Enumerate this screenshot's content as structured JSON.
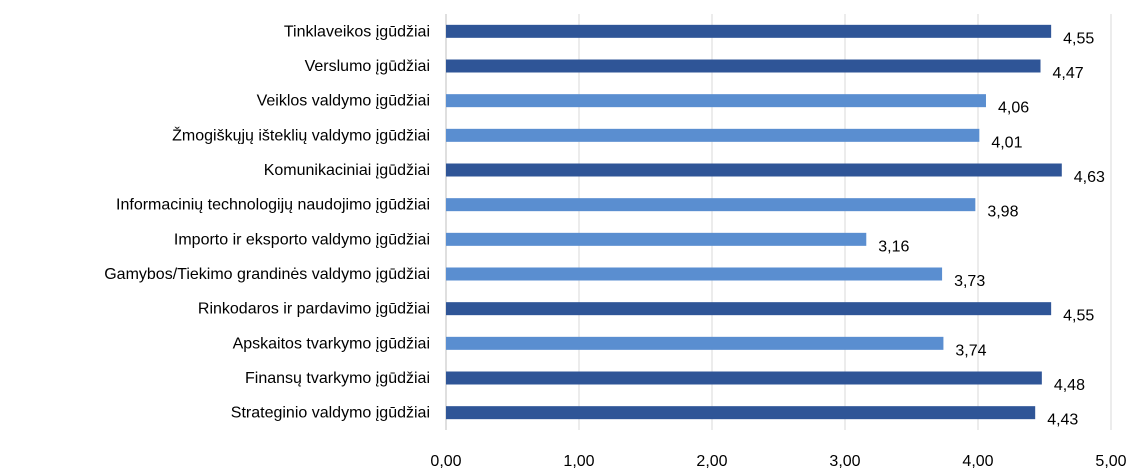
{
  "chart_data": {
    "type": "bar",
    "orientation": "horizontal",
    "categories": [
      "Tinklaveikos įgūdžiai",
      "Verslumo įgūdžiai",
      "Veiklos valdymo įgūdžiai",
      "Žmogiškųjų išteklių valdymo įgūdžiai",
      "Komunikaciniai įgūdžiai",
      "Informacinių technologijų naudojimo įgūdžiai",
      "Importo ir eksporto valdymo įgūdžiai",
      "Gamybos/Tiekimo grandinės valdymo įgūdžiai",
      "Rinkodaros ir pardavimo įgūdžiai",
      "Apskaitos tvarkymo įgūdžiai",
      "Finansų tvarkymo įgūdžiai",
      "Strateginio valdymo įgūdžiai"
    ],
    "values": [
      4.55,
      4.47,
      4.06,
      4.01,
      4.63,
      3.98,
      3.16,
      3.73,
      4.55,
      3.74,
      4.48,
      4.43
    ],
    "value_labels": [
      "4,55",
      "4,47",
      "4,06",
      "4,01",
      "4,63",
      "3,98",
      "3,16",
      "3,73",
      "4,55",
      "3,74",
      "4,48",
      "4,43"
    ],
    "bar_colors": [
      "#2f5597",
      "#2f5597",
      "#5a8ed0",
      "#5a8ed0",
      "#2f5597",
      "#5a8ed0",
      "#5a8ed0",
      "#5a8ed0",
      "#2f5597",
      "#5a8ed0",
      "#2f5597",
      "#2f5597"
    ],
    "x_ticks": [
      0,
      1,
      2,
      3,
      4,
      5
    ],
    "x_tick_labels": [
      "0,00",
      "1,00",
      "2,00",
      "3,00",
      "4,00",
      "5,00"
    ],
    "xlim": [
      0,
      5
    ],
    "grid": "vertical",
    "legend": "none",
    "title": "",
    "xlabel": "",
    "ylabel": ""
  }
}
